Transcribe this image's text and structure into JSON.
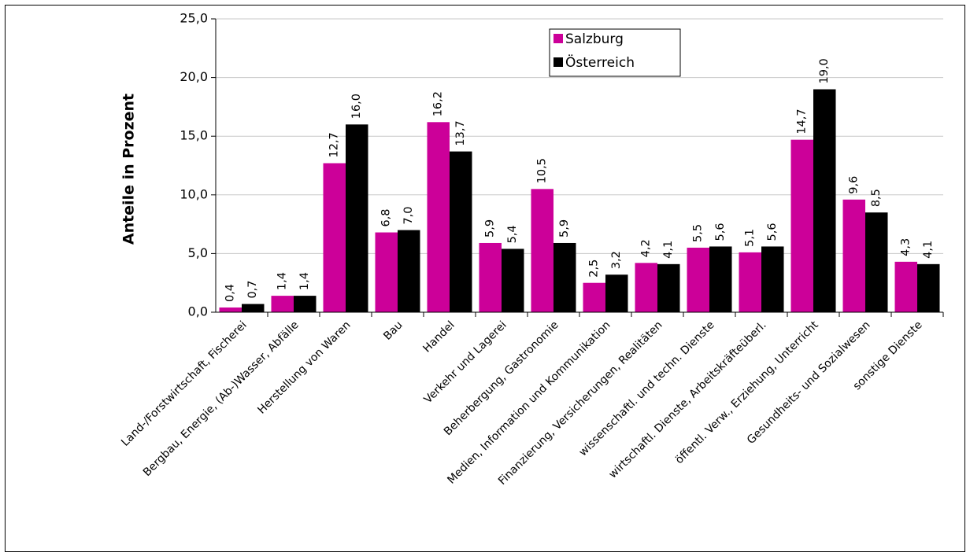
{
  "chart_data": {
    "type": "bar",
    "title": "",
    "xlabel": "",
    "ylabel": "Anteile in Prozent",
    "ylim": [
      0,
      25
    ],
    "yticks": [
      "0,0",
      "5,0",
      "10,0",
      "15,0",
      "20,0",
      "25,0"
    ],
    "grid": true,
    "legend_position": "top-right",
    "categories": [
      "Land-/Forstwirtschaft, Fischerei",
      "Bergbau, Energie, (Ab-)Wasser, Abfälle",
      "Herstellung von Waren",
      "Bau",
      "Handel",
      "Verkehr und Lagerei",
      "Beherbergung, Gastronomie",
      "Medien, Information und Kommunikation",
      "Finanzierung, Versicherungen, Realitäten",
      "wissenschaftl. und techn. Dienste",
      "wirtschaftl. Dienste, Arbeitskräfteüberl.",
      "öffentl. Verw., Erziehung, Unterricht",
      "Gesundheits- und Sozialwesen",
      "sonstige Dienste"
    ],
    "series": [
      {
        "name": "Salzburg",
        "color": "#cc0099",
        "values": [
          0.4,
          1.4,
          12.7,
          6.8,
          16.2,
          5.9,
          10.5,
          2.5,
          4.2,
          5.5,
          5.1,
          14.7,
          9.6,
          4.3
        ],
        "labels": [
          "0,4",
          "1,4",
          "12,7",
          "6,8",
          "16,2",
          "5,9",
          "10,5",
          "2,5",
          "4,2",
          "5,5",
          "5,1",
          "14,7",
          "9,6",
          "4,3"
        ]
      },
      {
        "name": "Österreich",
        "color": "#000000",
        "values": [
          0.7,
          1.4,
          16.0,
          7.0,
          13.7,
          5.4,
          5.9,
          3.2,
          4.1,
          5.6,
          5.6,
          19.0,
          8.5,
          4.1
        ],
        "labels": [
          "0,7",
          "1,4",
          "16,0",
          "7,0",
          "13,7",
          "5,4",
          "5,9",
          "3,2",
          "4,1",
          "5,6",
          "5,6",
          "19,0",
          "8,5",
          "4,1"
        ]
      }
    ]
  }
}
